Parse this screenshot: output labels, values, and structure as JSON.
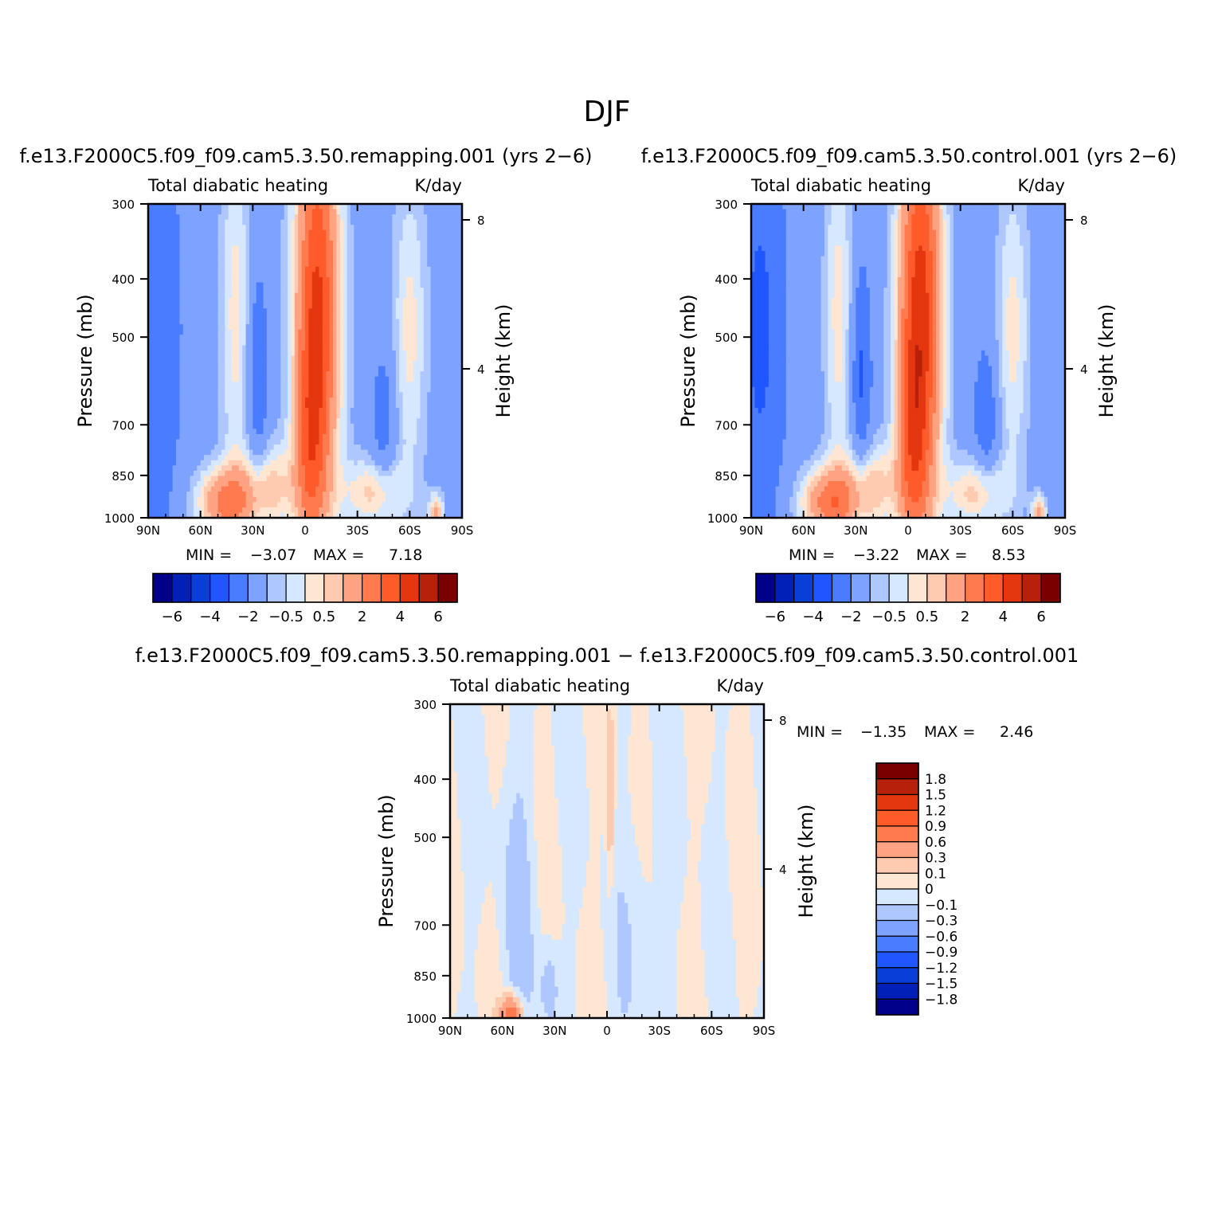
{
  "figure": {
    "title": "DJF"
  },
  "colors": {
    "abs_levels": [
      "#00008b",
      "#0020b8",
      "#0a3ed8",
      "#1f56ff",
      "#4a7cff",
      "#7da2ff",
      "#aec8ff",
      "#d6e8ff",
      "#ffe6d2",
      "#ffcbb0",
      "#ffa382",
      "#ff7a4e",
      "#ff5a2a",
      "#e4360f",
      "#b7200b",
      "#7a0000"
    ],
    "diff_levels": [
      "#00008b",
      "#0020b8",
      "#0a3ed8",
      "#1f56ff",
      "#4a7cff",
      "#7da2ff",
      "#aec8ff",
      "#d6e8ff",
      "#ffe6d2",
      "#ffcbb0",
      "#ffa382",
      "#ff7a4e",
      "#ff5a2a",
      "#e4360f",
      "#b7200b",
      "#7a0000"
    ]
  },
  "panels": [
    {
      "title": "f.e13.F2000C5.f09_f09.cam5.3.50.remapping.001  (yrs 2−6)",
      "left_label": "Total diabatic heating",
      "right_label": "K/day",
      "ylabel": "Pressure (mb)",
      "right_axis_label": "Height (km)",
      "min_label": "MIN =",
      "min_value": "−3.07",
      "max_label": "MAX =",
      "max_value": "7.18"
    },
    {
      "title": "f.e13.F2000C5.f09_f09.cam5.3.50.control.001  (yrs 2−6)",
      "left_label": "Total diabatic heating",
      "right_label": "K/day",
      "ylabel": "Pressure (mb)",
      "right_axis_label": "Height (km)",
      "min_label": "MIN =",
      "min_value": "−3.22",
      "max_label": "MAX =",
      "max_value": "8.53"
    },
    {
      "title": "f.e13.F2000C5.f09_f09.cam5.3.50.remapping.001 − f.e13.F2000C5.f09_f09.cam5.3.50.control.001",
      "left_label": "Total diabatic heating",
      "right_label": "K/day",
      "ylabel": "Pressure (mb)",
      "right_axis_label": "Height (km)",
      "min_label": "MIN =",
      "min_value": "−1.35",
      "max_label": "MAX =",
      "max_value": "2.46"
    }
  ],
  "axes": {
    "x_ticks": [
      "90N",
      "60N",
      "30N",
      "0",
      "30S",
      "60S",
      "90S"
    ],
    "y_ticks": [
      "300",
      "400",
      "500",
      "700",
      "850",
      "1000"
    ],
    "height_ticks": [
      "8",
      "4"
    ]
  },
  "colorbars": {
    "abs_labels": [
      "−6",
      "−4",
      "−2",
      "−0.5",
      "0.5",
      "2",
      "4",
      "6"
    ],
    "diff_labels": [
      "1.8",
      "1.5",
      "1.2",
      "0.9",
      "0.6",
      "0.3",
      "0.1",
      "0",
      "−0.1",
      "−0.3",
      "−0.6",
      "−0.9",
      "−1.2",
      "−1.5",
      "−1.8"
    ]
  },
  "chart_data": [
    {
      "type": "heatmap",
      "title": "Total diabatic heating",
      "units": "K/day",
      "x": [
        "90N",
        "60N",
        "30N",
        "0",
        "30S",
        "60S",
        "90S"
      ],
      "y": [
        300,
        400,
        500,
        700,
        850,
        1000
      ],
      "ylabel": "Pressure (mb)",
      "ylabel_right": "Height (km)",
      "min": -3.07,
      "max": 7.18,
      "contour_levels": [
        -6,
        -5,
        -4,
        -3,
        -2,
        -1,
        -0.5,
        0,
        0.5,
        1,
        2,
        3,
        4,
        5,
        6
      ]
    },
    {
      "type": "heatmap",
      "title": "Total diabatic heating",
      "units": "K/day",
      "x": [
        "90N",
        "60N",
        "30N",
        "0",
        "30S",
        "60S",
        "90S"
      ],
      "y": [
        300,
        400,
        500,
        700,
        850,
        1000
      ],
      "ylabel": "Pressure (mb)",
      "ylabel_right": "Height (km)",
      "min": -3.22,
      "max": 8.53,
      "contour_levels": [
        -6,
        -5,
        -4,
        -3,
        -2,
        -1,
        -0.5,
        0,
        0.5,
        1,
        2,
        3,
        4,
        5,
        6
      ]
    },
    {
      "type": "heatmap",
      "title": "Total diabatic heating",
      "units": "K/day",
      "x": [
        "90N",
        "60N",
        "30N",
        "0",
        "30S",
        "60S",
        "90S"
      ],
      "y": [
        300,
        400,
        500,
        700,
        850,
        1000
      ],
      "ylabel": "Pressure (mb)",
      "ylabel_right": "Height (km)",
      "min": -1.35,
      "max": 2.46,
      "contour_levels": [
        -1.8,
        -1.5,
        -1.2,
        -0.9,
        -0.6,
        -0.3,
        -0.1,
        0,
        0.1,
        0.3,
        0.6,
        0.9,
        1.2,
        1.5,
        1.8
      ]
    }
  ]
}
